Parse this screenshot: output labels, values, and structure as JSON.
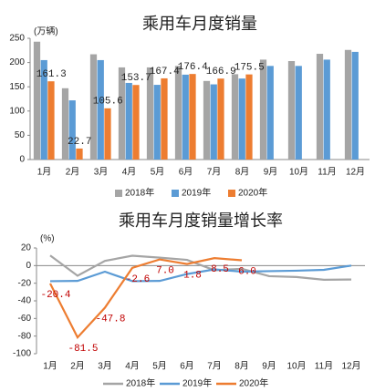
{
  "chart_data": [
    {
      "type": "bar",
      "title": "乘用车月度销量",
      "y_label": "(万辆)",
      "categories": [
        "1月",
        "2月",
        "3月",
        "4月",
        "5月",
        "6月",
        "7月",
        "8月",
        "9月",
        "10月",
        "11月",
        "12月"
      ],
      "series": [
        {
          "name": "2018年",
          "color": "#a5a5a5",
          "values": [
            243,
            147,
            217,
            190,
            190,
            193,
            162,
            176,
            206,
            203,
            218,
            226
          ]
        },
        {
          "name": "2019年",
          "color": "#5b9bd5",
          "values": [
            205,
            122,
            205,
            158,
            154,
            175,
            155,
            167,
            193,
            193,
            206,
            222
          ]
        },
        {
          "name": "2020年",
          "color": "#ed7d31",
          "values": [
            161.3,
            22.7,
            105.6,
            153.7,
            167.4,
            176.4,
            166.9,
            175.5,
            null,
            null,
            null,
            null
          ],
          "show_labels": true
        }
      ],
      "ylim": [
        0,
        250
      ],
      "yticks": [
        0,
        50,
        100,
        150,
        200,
        250
      ],
      "legend": "bottom"
    },
    {
      "type": "line",
      "title": "乘用车月度销量增长率",
      "y_label": "(%)",
      "categories": [
        "1月",
        "2月",
        "3月",
        "4月",
        "5月",
        "6月",
        "7月",
        "8月",
        "9月",
        "10月",
        "11月",
        "12月"
      ],
      "series": [
        {
          "name": "2018年",
          "color": "#a5a5a5",
          "values": [
            11.5,
            -11.5,
            5.3,
            11.2,
            9,
            6.5,
            -5.3,
            -3.6,
            -12,
            -13,
            -16.1,
            -15.8
          ]
        },
        {
          "name": "2019年",
          "color": "#5b9bd5",
          "values": [
            -17.7,
            -17.4,
            -6.9,
            -17.7,
            -17.4,
            -9.6,
            -4.3,
            -6.9,
            -6.3,
            -5.8,
            -4.8,
            0
          ]
        },
        {
          "name": "2020年",
          "color": "#ed7d31",
          "values": [
            -20.4,
            -81.5,
            -47.8,
            -2.6,
            7,
            1.8,
            8.5,
            6,
            null,
            null,
            null,
            null
          ],
          "value_labels": [
            "-20.4",
            "-81.5",
            "-47.8",
            "-2.6",
            "7.0",
            "1.8",
            "8.5",
            "6.0",
            null,
            null,
            null,
            null
          ],
          "label_color": "#c00000"
        }
      ],
      "ylim": [
        -100,
        20
      ],
      "yticks": [
        -100,
        -80,
        -60,
        -40,
        -20,
        0,
        20
      ],
      "legend": "bottom"
    }
  ]
}
